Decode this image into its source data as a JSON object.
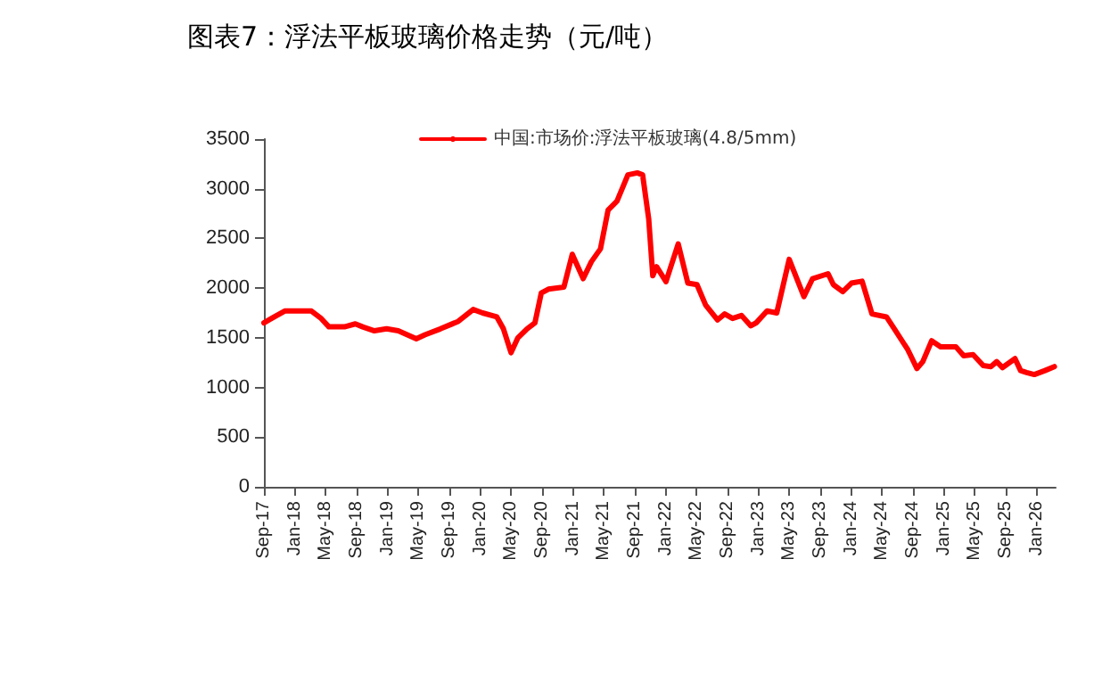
{
  "chart_data": {
    "type": "line",
    "title": "图表7：浮法平板玻璃价格走势（元/吨）",
    "x": [
      "2017-09-01",
      "2017-10-01",
      "2017-11-22",
      "2018-02-01",
      "2018-03-07",
      "2018-04-12",
      "2018-05-15",
      "2018-07-15",
      "2018-08-27",
      "2018-09-25",
      "2018-11-10",
      "2018-12-28",
      "2019-02-12",
      "2019-04-24",
      "2019-05-28",
      "2019-07-28",
      "2019-10-06",
      "2019-12-04",
      "2020-01-10",
      "2020-03-06",
      "2020-04-01",
      "2020-05-01",
      "2020-05-28",
      "2020-07-03",
      "2020-08-03",
      "2020-08-28",
      "2020-09-25",
      "2020-11-25",
      "2020-12-28",
      "2021-02-09",
      "2021-03-13",
      "2021-04-18",
      "2021-05-18",
      "2021-06-22",
      "2021-08-04",
      "2021-09-10",
      "2021-10-01",
      "2021-10-25",
      "2021-11-10",
      "2021-11-25",
      "2022-01-01",
      "2022-02-18",
      "2022-03-28",
      "2022-05-03",
      "2022-06-06",
      "2022-07-23",
      "2022-08-20",
      "2022-09-20",
      "2022-10-25",
      "2022-12-01",
      "2022-12-22",
      "2023-02-03",
      "2023-03-13",
      "2023-05-01",
      "2023-06-28",
      "2023-08-01",
      "2023-10-01",
      "2023-10-22",
      "2023-11-28",
      "2024-01-01",
      "2024-02-12",
      "2024-03-22",
      "2024-05-18",
      "2024-06-18",
      "2024-08-10",
      "2024-09-15",
      "2024-10-08",
      "2024-11-12",
      "2024-12-17",
      "2025-02-15",
      "2025-03-18",
      "2025-04-24",
      "2025-06-03",
      "2025-07-03",
      "2025-07-26",
      "2025-08-18",
      "2025-10-06",
      "2025-10-28",
      "2025-11-21",
      "2025-12-21",
      "2026-02-01",
      "2026-03-10"
    ],
    "series": [
      {
        "name": "中国:市场价:浮法平板玻璃(4.8/5mm)",
        "color": "#ff0000",
        "values": [
          1650,
          1695,
          1770,
          1770,
          1770,
          1700,
          1610,
          1610,
          1640,
          1610,
          1570,
          1590,
          1570,
          1490,
          1530,
          1590,
          1665,
          1785,
          1750,
          1710,
          1590,
          1350,
          1500,
          1590,
          1650,
          1950,
          1990,
          2010,
          2340,
          2095,
          2265,
          2395,
          2785,
          2875,
          3140,
          3160,
          3140,
          2695,
          2125,
          2215,
          2065,
          2445,
          2050,
          2035,
          1830,
          1680,
          1740,
          1695,
          1725,
          1620,
          1650,
          1770,
          1750,
          2290,
          1915,
          2095,
          2145,
          2035,
          1965,
          2050,
          2070,
          1740,
          1710,
          1590,
          1380,
          1190,
          1260,
          1470,
          1410,
          1410,
          1320,
          1330,
          1220,
          1210,
          1260,
          1200,
          1290,
          1170,
          1150,
          1130,
          1170,
          1210
        ]
      }
    ],
    "xlim": [
      "2017-09-01",
      "2026-03-15"
    ],
    "xticks": [
      {
        "value": "2017-09",
        "label": "Sep-17"
      },
      {
        "value": "2018-01",
        "label": "Jan-18"
      },
      {
        "value": "2018-05",
        "label": "May-18"
      },
      {
        "value": "2018-09",
        "label": "Sep-18"
      },
      {
        "value": "2019-01",
        "label": "Jan-19"
      },
      {
        "value": "2019-05",
        "label": "May-19"
      },
      {
        "value": "2019-09",
        "label": "Sep-19"
      },
      {
        "value": "2020-01",
        "label": "Jan-20"
      },
      {
        "value": "2020-05",
        "label": "May-20"
      },
      {
        "value": "2020-09",
        "label": "Sep-20"
      },
      {
        "value": "2021-01",
        "label": "Jan-21"
      },
      {
        "value": "2021-05",
        "label": "May-21"
      },
      {
        "value": "2021-09",
        "label": "Sep-21"
      },
      {
        "value": "2022-01",
        "label": "Jan-22"
      },
      {
        "value": "2022-05",
        "label": "May-22"
      },
      {
        "value": "2022-09",
        "label": "Sep-22"
      },
      {
        "value": "2023-01",
        "label": "Jan-23"
      },
      {
        "value": "2023-05",
        "label": "May-23"
      },
      {
        "value": "2023-09",
        "label": "Sep-23"
      },
      {
        "value": "2024-01",
        "label": "Jan-24"
      },
      {
        "value": "2024-05",
        "label": "May-24"
      },
      {
        "value": "2024-09",
        "label": "Sep-24"
      },
      {
        "value": "2025-01",
        "label": "Jan-25"
      },
      {
        "value": "2025-05",
        "label": "May-25"
      },
      {
        "value": "2025-09",
        "label": "Sep-25"
      },
      {
        "value": "2026-01",
        "label": "Jan-26"
      }
    ],
    "ylim": [
      0,
      3500
    ],
    "yticks": [
      0,
      500,
      1000,
      1500,
      2000,
      2500,
      3000,
      3500
    ],
    "grid": false,
    "legend": "top",
    "marker": "none",
    "line_style": "solid"
  }
}
